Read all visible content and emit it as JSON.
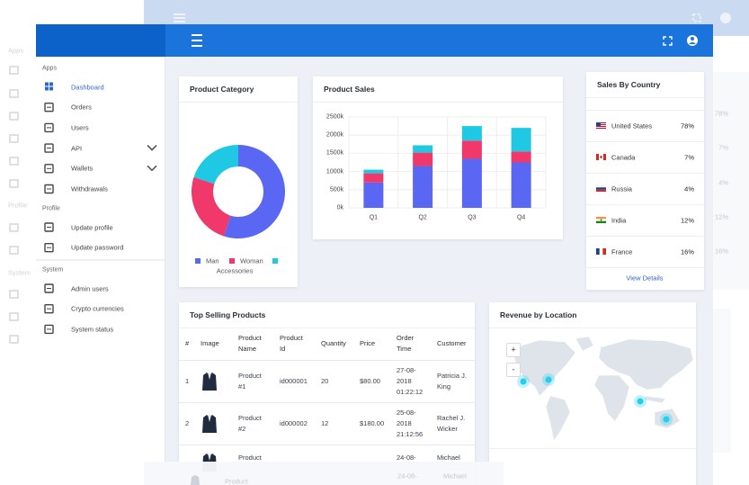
{
  "background": {
    "sidebar_sections": [
      "Apps",
      "Profile",
      "System"
    ],
    "country_values": [
      "78%",
      "7%",
      "4%",
      "12%",
      "16%"
    ],
    "table_cells": [
      "Product",
      "24-08-",
      "Michael"
    ]
  },
  "sidebar": {
    "sections": [
      {
        "title": "Apps",
        "items": [
          {
            "label": "Dashboard",
            "active": true
          },
          {
            "label": "Orders"
          },
          {
            "label": "Users"
          },
          {
            "label": "API",
            "expandable": true
          },
          {
            "label": "Wallets",
            "expandable": true
          },
          {
            "label": "Withdrawals"
          }
        ]
      },
      {
        "title": "Profile",
        "items": [
          {
            "label": "Update profile"
          },
          {
            "label": "Update password"
          }
        ]
      },
      {
        "title": "System",
        "items": [
          {
            "label": "Admin users"
          },
          {
            "label": "Crypto currencies"
          },
          {
            "label": "System status"
          }
        ]
      }
    ]
  },
  "chart_data": [
    {
      "type": "pie",
      "title": "Product Category",
      "donut": true,
      "categories": [
        "Man",
        "Woman",
        "Accessories"
      ],
      "values": [
        55,
        25,
        20
      ],
      "colors": [
        "#5a67f2",
        "#f0386b",
        "#1fc8e3"
      ]
    },
    {
      "type": "bar",
      "title": "Product Sales",
      "stacked": true,
      "grid": true,
      "categories": [
        "Q1",
        "Q2",
        "Q3",
        "Q4"
      ],
      "series": [
        {
          "color": "#5a67f2",
          "values": [
            700,
            1150,
            1350,
            1250
          ]
        },
        {
          "color": "#f0386b",
          "values": [
            250,
            370,
            500,
            300
          ]
        },
        {
          "color": "#1fc8e3",
          "values": [
            100,
            200,
            400,
            650
          ]
        }
      ],
      "ylim": [
        0,
        2500
      ],
      "yticks": [
        {
          "value": 0,
          "label": "0k"
        },
        {
          "value": 500,
          "label": "500k"
        },
        {
          "value": 1000,
          "label": "1000k"
        },
        {
          "value": 1500,
          "label": "1500k"
        },
        {
          "value": 2000,
          "label": "2000k"
        },
        {
          "value": 2500,
          "label": "2500k"
        }
      ]
    }
  ],
  "sales_by_country": {
    "title": "Sales By Country",
    "rows": [
      {
        "country": "United States",
        "value": "78%"
      },
      {
        "country": "Canada",
        "value": "7%"
      },
      {
        "country": "Russia",
        "value": "4%"
      },
      {
        "country": "India",
        "value": "12%"
      },
      {
        "country": "France",
        "value": "16%"
      }
    ],
    "link": "View Details"
  },
  "top_selling": {
    "title": "Top Selling Products",
    "columns": [
      "#",
      "Image",
      "Product Name",
      "Product Id",
      "Quantity",
      "Price",
      "Order Time",
      "Customer"
    ],
    "rows": [
      {
        "index": "1",
        "name": "Product #1",
        "id": "id000001",
        "quantity": "20",
        "price": "$80.00",
        "order_time": "27-08-2018 01:22:12",
        "customer": "Patricia J. King"
      },
      {
        "index": "2",
        "name": "Product #2",
        "id": "id000002",
        "quantity": "12",
        "price": "$180.00",
        "order_time": "25-08-2018 21:12:56",
        "customer": "Rachel J. Wicker"
      },
      {
        "name": "Product",
        "order_time": "24-08-",
        "customer": "Michael"
      }
    ]
  },
  "revenue_by_location": {
    "title": "Revenue by Location",
    "zoom_in": "+",
    "zoom_out": "-"
  }
}
